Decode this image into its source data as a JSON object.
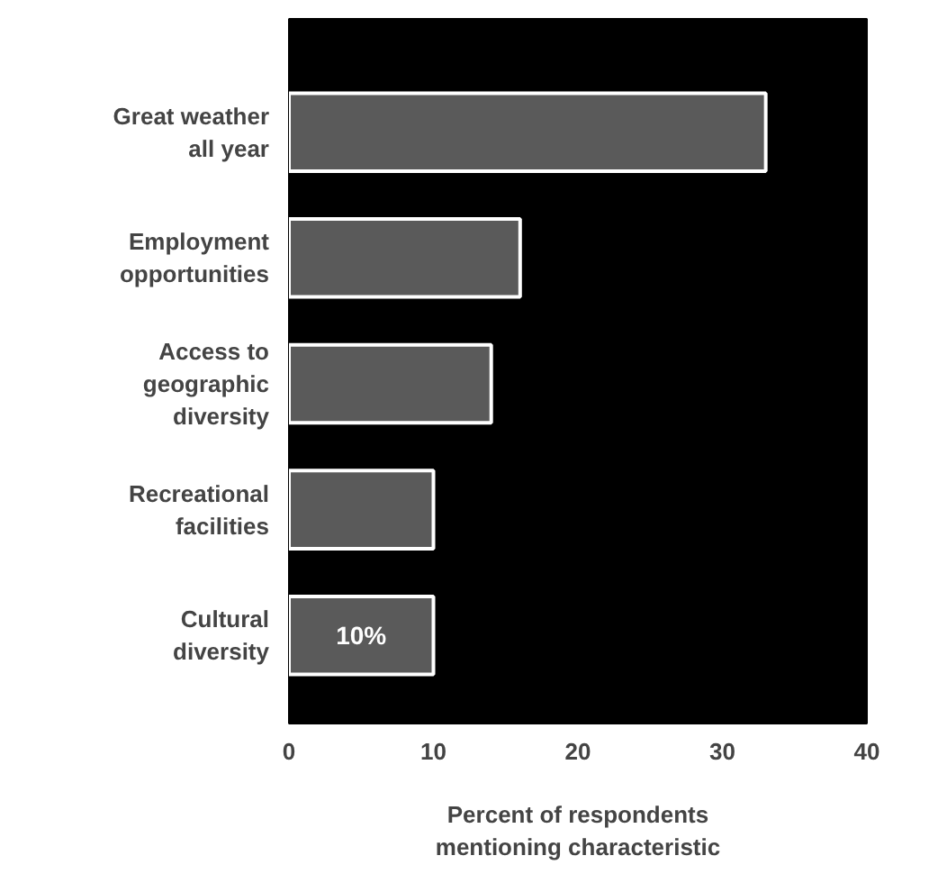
{
  "chart_data": {
    "type": "bar",
    "orientation": "horizontal",
    "categories": [
      "Great weather\nall year",
      "Employment\nopportunities",
      "Access to\ngeographic\ndiversity",
      "Recreational\nfacilities",
      "Cultural\ndiversity"
    ],
    "values": [
      33,
      16,
      14,
      10,
      10
    ],
    "color": "#5a5a5a",
    "value_labels": [
      null,
      null,
      null,
      null,
      "10%"
    ],
    "xlim": [
      0,
      40
    ],
    "xticks": [
      0,
      10,
      20,
      30,
      40
    ],
    "xlabel": "Percent of respondents\nmentioning characteristic",
    "grid": false
  }
}
